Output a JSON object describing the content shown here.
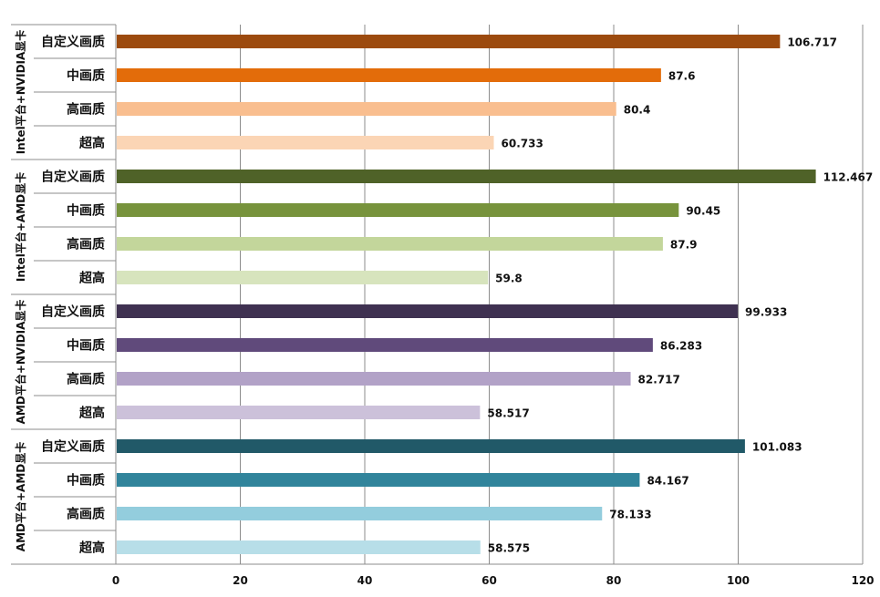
{
  "chart_data": {
    "type": "bar",
    "orientation": "horizontal",
    "xlim": [
      0,
      120
    ],
    "x_ticks": [
      "0",
      "20",
      "40",
      "60",
      "80",
      "100",
      "120"
    ],
    "grid": true,
    "groups": [
      {
        "name": "Intel平台+NVIDIA显卡",
        "bars": [
          {
            "category": "自定义画质",
            "value": 106.717,
            "label": "106.717",
            "color": "#9C4A0E"
          },
          {
            "category": "中画质",
            "value": 87.6,
            "label": "87.6",
            "color": "#E36C0A"
          },
          {
            "category": "高画质",
            "value": 80.4,
            "label": "80.4",
            "color": "#F9BE8F"
          },
          {
            "category": "超高",
            "value": 60.733,
            "label": "60.733",
            "color": "#FBD5B5"
          }
        ]
      },
      {
        "name": "Intel平台+AMD显卡",
        "bars": [
          {
            "category": "自定义画质",
            "value": 112.467,
            "label": "112.467",
            "color": "#4F6228"
          },
          {
            "category": "中画质",
            "value": 90.45,
            "label": "90.45",
            "color": "#77933C"
          },
          {
            "category": "高画质",
            "value": 87.9,
            "label": "87.9",
            "color": "#C3D69B"
          },
          {
            "category": "超高",
            "value": 59.8,
            "label": "59.8",
            "color": "#D7E4BD"
          }
        ]
      },
      {
        "name": "AMD平台+NVIDIA显卡",
        "bars": [
          {
            "category": "自定义画质",
            "value": 99.933,
            "label": "99.933",
            "color": "#3F3151"
          },
          {
            "category": "中画质",
            "value": 86.283,
            "label": "86.283",
            "color": "#604A7B"
          },
          {
            "category": "高画质",
            "value": 82.717,
            "label": "82.717",
            "color": "#B2A2C7"
          },
          {
            "category": "超高",
            "value": 58.517,
            "label": "58.517",
            "color": "#CCC1DA"
          }
        ]
      },
      {
        "name": "AMD平台+AMD显卡",
        "bars": [
          {
            "category": "自定义画质",
            "value": 101.083,
            "label": "101.083",
            "color": "#215968"
          },
          {
            "category": "中画质",
            "value": 84.167,
            "label": "84.167",
            "color": "#31849B"
          },
          {
            "category": "高画质",
            "value": 78.133,
            "label": "78.133",
            "color": "#93CDDD"
          },
          {
            "category": "超高",
            "value": 58.575,
            "label": "58.575",
            "color": "#B7DEE8"
          }
        ]
      }
    ]
  }
}
